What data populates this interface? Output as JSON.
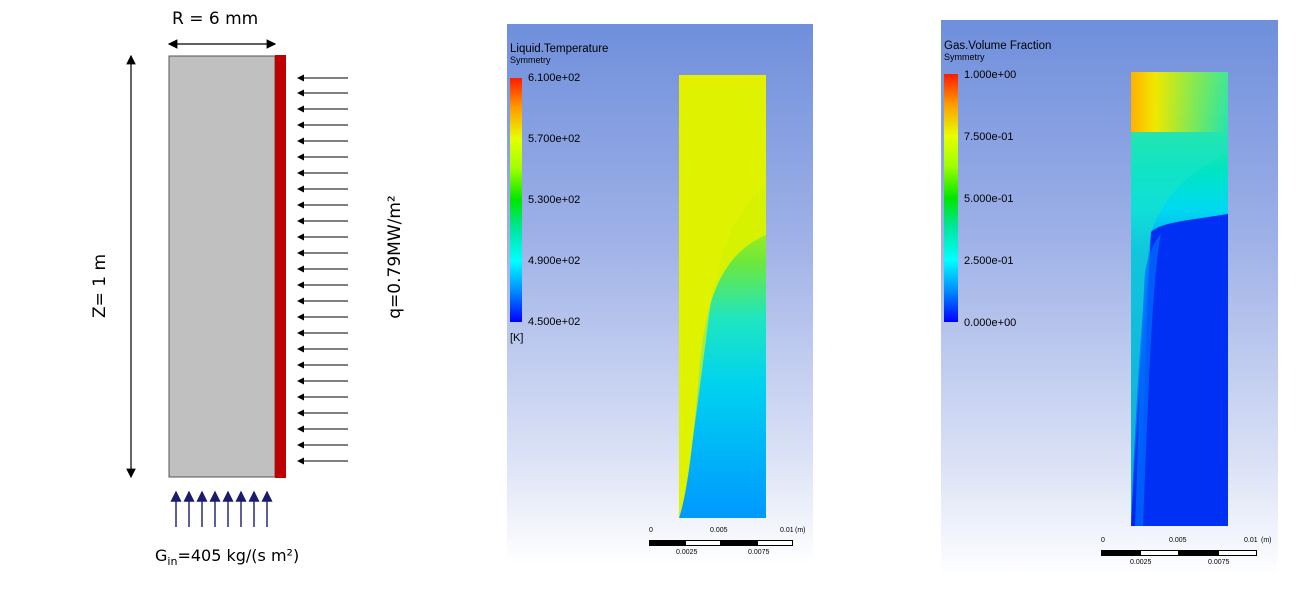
{
  "schematic": {
    "radius_label": "R = 6 mm",
    "height_label": "Z= 1 m",
    "heat_flux_label": "q=0.79MW/m²",
    "inlet_label_main": "G",
    "inlet_label_sub": "in",
    "inlet_label_rest": "=405 kg/(s m²)",
    "colors": {
      "pipe": "#c0c0c0",
      "heated_wall": "#c00000",
      "inlet_arrows": "#1a1a6e",
      "flux_arrows": "#000000"
    }
  },
  "temperature_panel": {
    "title": "Liquid.Temperature",
    "subtitle": "Symmetry",
    "unit": "[K]",
    "legend_ticks": [
      "6.100e+02",
      "5.700e+02",
      "5.300e+02",
      "4.900e+02",
      "4.500e+02"
    ],
    "scale_ticks_top": [
      "0",
      "0.005",
      "0.01"
    ],
    "scale_unit": "(m)",
    "scale_ticks_bottom": [
      "0.0025",
      "0.0075"
    ]
  },
  "gas_panel": {
    "title": "Gas.Volume Fraction",
    "subtitle": "Symmetry",
    "legend_ticks": [
      "1.000e+00",
      "7.500e-01",
      "5.000e-01",
      "2.500e-01",
      "0.000e+00"
    ],
    "scale_ticks_top": [
      "0",
      "0.005",
      "0.01"
    ],
    "scale_unit": "(m)",
    "scale_ticks_bottom": [
      "0.0025",
      "0.0075"
    ]
  }
}
